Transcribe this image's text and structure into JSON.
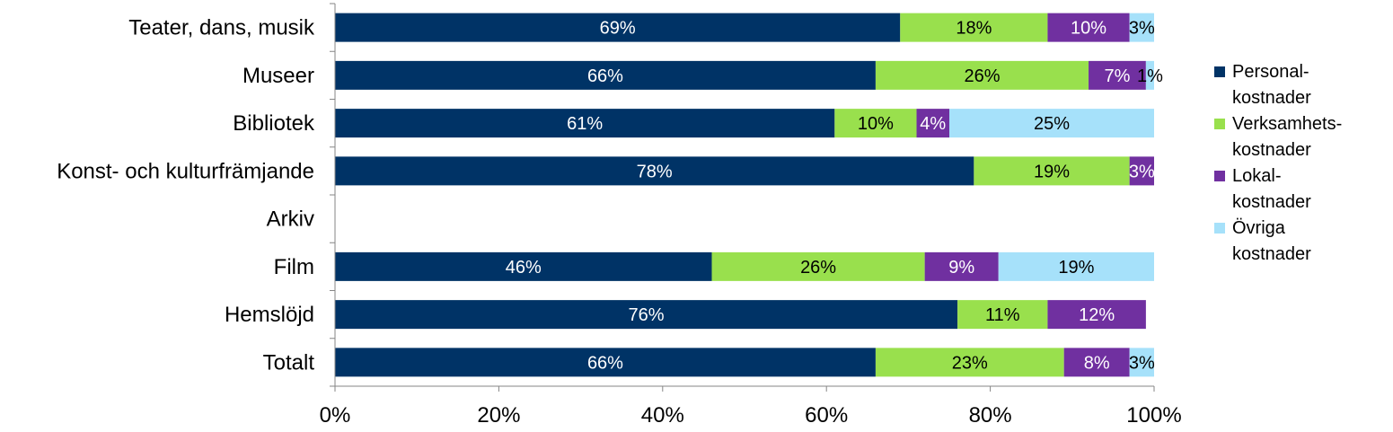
{
  "chart_data": {
    "type": "bar",
    "orientation": "horizontal",
    "stacked": "percent",
    "categories": [
      "Teater, dans, musik",
      "Museer",
      "Bibliotek",
      "Konst- och kulturfrämjande",
      "Arkiv",
      "Film",
      "Hemslöjd",
      "Totalt"
    ],
    "series": [
      {
        "name": "Personal-kostnader",
        "legend_lines": [
          "Personal-",
          "kostnader"
        ],
        "color": "#003366",
        "label_color": "#ffffff",
        "values": [
          69,
          66,
          61,
          78,
          null,
          46,
          76,
          66
        ]
      },
      {
        "name": "Verksamhets-kostnader",
        "legend_lines": [
          "Verksamhets-",
          "kostnader"
        ],
        "color": "#99E04D",
        "label_color": "#000000",
        "values": [
          18,
          26,
          10,
          19,
          null,
          26,
          11,
          23
        ]
      },
      {
        "name": "Lokal-kostnader",
        "legend_lines": [
          "Lokal-",
          "kostnader"
        ],
        "color": "#7030A0",
        "label_color": "#ffffff",
        "values": [
          10,
          7,
          4,
          3,
          null,
          9,
          12,
          8
        ]
      },
      {
        "name": "Övriga kostnader",
        "legend_lines": [
          "Övriga",
          "kostnader"
        ],
        "color": "#A6E1FA",
        "label_color": "#000000",
        "values": [
          3,
          1,
          25,
          0,
          null,
          19,
          0,
          3
        ]
      }
    ],
    "data_labels": [
      [
        "69%",
        "18%",
        "10%",
        "3%"
      ],
      [
        "66%",
        "26%",
        "7%",
        "1%"
      ],
      [
        "61%",
        "10%",
        "4%",
        "25%"
      ],
      [
        "78%",
        "19%",
        "3%",
        ""
      ],
      [
        "",
        "",
        "",
        ""
      ],
      [
        "46%",
        "26%",
        "9%",
        "19%"
      ],
      [
        "76%",
        "11%",
        "12%",
        ""
      ],
      [
        "66%",
        "23%",
        "8%",
        "3%"
      ]
    ],
    "xaxis": {
      "ticks": [
        "0%",
        "20%",
        "40%",
        "60%",
        "80%",
        "100%"
      ],
      "range": [
        0,
        100
      ]
    },
    "grid": false,
    "legend_position": "right"
  }
}
